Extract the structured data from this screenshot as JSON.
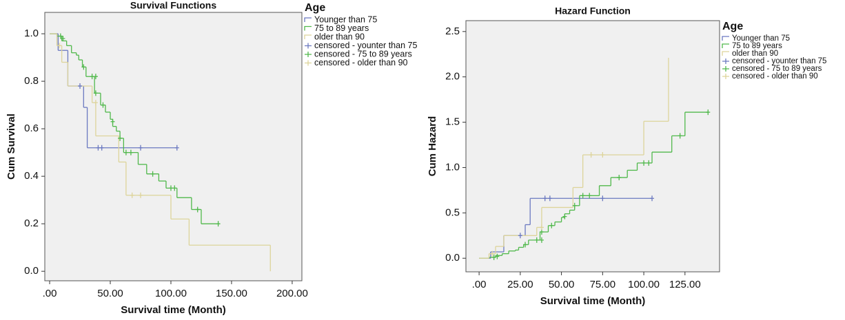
{
  "chart_data": [
    {
      "type": "step",
      "title": "Survival Functions",
      "x_label": "Survival time (Month)",
      "y_label": "Cum Survival",
      "legend_title": "Age",
      "xlim": [
        -4,
        208
      ],
      "ylim": [
        -0.04,
        1.09
      ],
      "xticks": [
        {
          "value": 0,
          "label": ".00"
        },
        {
          "value": 50,
          "label": "50.00"
        },
        {
          "value": 100,
          "label": "100.00"
        },
        {
          "value": 150,
          "label": "150.00"
        },
        {
          "value": 200,
          "label": "200.00"
        }
      ],
      "yticks": [
        {
          "value": 0,
          "label": "0.0"
        },
        {
          "value": 0.2,
          "label": "0.2"
        },
        {
          "value": 0.4,
          "label": "0.4"
        },
        {
          "value": 0.6,
          "label": "0.6"
        },
        {
          "value": 0.8,
          "label": "0.8"
        },
        {
          "value": 1,
          "label": "1.0"
        }
      ],
      "series": [
        {
          "name": "Younger than 75",
          "color": "#6a78c0",
          "x": [
            0,
            7,
            15,
            28,
            31,
            105
          ],
          "values": [
            1.0,
            0.93,
            0.78,
            0.69,
            0.52,
            0.52
          ]
        },
        {
          "name": "75 to 89 years",
          "color": "#4fb84a",
          "x": [
            0,
            6,
            10,
            14,
            18,
            22,
            24,
            27,
            30,
            37,
            42,
            46,
            50,
            52,
            55,
            58,
            61,
            73,
            80,
            90,
            96,
            105,
            117,
            125,
            139
          ],
          "values": [
            1.0,
            0.99,
            0.97,
            0.95,
            0.92,
            0.91,
            0.89,
            0.86,
            0.82,
            0.75,
            0.7,
            0.67,
            0.64,
            0.61,
            0.59,
            0.56,
            0.5,
            0.45,
            0.41,
            0.38,
            0.35,
            0.31,
            0.26,
            0.2,
            0.2
          ]
        },
        {
          "name": "older than 90",
          "color": "#ddd49a",
          "x": [
            0,
            6,
            10,
            15,
            35,
            38,
            57,
            63,
            100,
            115,
            182
          ],
          "values": [
            1.0,
            0.95,
            0.88,
            0.78,
            0.71,
            0.57,
            0.46,
            0.32,
            0.22,
            0.11,
            0.0
          ]
        },
        {
          "name": "censored - younter than 75",
          "color": "#6a78c0",
          "marker": "+",
          "x": [
            25,
            40,
            43,
            75,
            105
          ],
          "values": [
            0.78,
            0.52,
            0.52,
            0.52,
            0.52
          ]
        },
        {
          "name": "censored - 75 to 89 years",
          "color": "#4fb84a",
          "marker": "+",
          "x": [
            9,
            11,
            28,
            35,
            38,
            38,
            44,
            52,
            58,
            63,
            67,
            85,
            100,
            103,
            122,
            139
          ],
          "values": [
            0.99,
            0.98,
            0.86,
            0.82,
            0.82,
            0.75,
            0.7,
            0.63,
            0.56,
            0.5,
            0.5,
            0.41,
            0.35,
            0.35,
            0.26,
            0.2
          ]
        },
        {
          "name": "censored - older than 90",
          "color": "#ddd49a",
          "marker": "+",
          "x": [
            8,
            38,
            68,
            75
          ],
          "values": [
            0.95,
            0.71,
            0.32,
            0.32
          ]
        }
      ]
    },
    {
      "type": "step",
      "title": "Hazard Function",
      "x_label": "Survival time (Month)",
      "y_label": "Cum Hazard",
      "legend_title": "Age",
      "xlim": [
        -8,
        146
      ],
      "ylim": [
        -0.15,
        2.62
      ],
      "xticks": [
        {
          "value": 0,
          "label": ".00"
        },
        {
          "value": 25,
          "label": "25.00"
        },
        {
          "value": 50,
          "label": "50.00"
        },
        {
          "value": 75,
          "label": "75.00"
        },
        {
          "value": 100,
          "label": "100.00"
        },
        {
          "value": 125,
          "label": "125.00"
        }
      ],
      "yticks": [
        {
          "value": 0,
          "label": "0.0"
        },
        {
          "value": 0.5,
          "label": "0.5"
        },
        {
          "value": 1,
          "label": "1.0"
        },
        {
          "value": 1.5,
          "label": "1.5"
        },
        {
          "value": 2,
          "label": "2.0"
        },
        {
          "value": 2.5,
          "label": "2.5"
        }
      ],
      "series": [
        {
          "name": "Younger than 75",
          "color": "#6a78c0",
          "x": [
            0,
            7,
            15,
            28,
            31,
            105
          ],
          "values": [
            0,
            0.07,
            0.25,
            0.37,
            0.66,
            0.66
          ]
        },
        {
          "name": "75 to 89 years",
          "color": "#4fb84a",
          "x": [
            0,
            6,
            10,
            14,
            18,
            22,
            24,
            27,
            30,
            37,
            42,
            46,
            50,
            52,
            55,
            58,
            61,
            73,
            80,
            90,
            96,
            105,
            117,
            125,
            139
          ],
          "values": [
            0,
            0.01,
            0.03,
            0.05,
            0.08,
            0.09,
            0.12,
            0.15,
            0.2,
            0.29,
            0.36,
            0.4,
            0.45,
            0.49,
            0.53,
            0.58,
            0.69,
            0.8,
            0.89,
            0.97,
            1.05,
            1.17,
            1.35,
            1.61,
            1.61
          ]
        },
        {
          "name": "older than 90",
          "color": "#ddd49a",
          "x": [
            0,
            6,
            10,
            15,
            35,
            38,
            57,
            63,
            100,
            115
          ],
          "values": [
            0,
            0.05,
            0.13,
            0.25,
            0.34,
            0.56,
            0.78,
            1.14,
            1.51,
            2.21
          ]
        },
        {
          "name": "censored - younter than 75",
          "color": "#6a78c0",
          "marker": "+",
          "x": [
            25,
            40,
            43,
            75,
            105
          ],
          "values": [
            0.25,
            0.66,
            0.66,
            0.66,
            0.66
          ]
        },
        {
          "name": "censored - 75 to 89 years",
          "color": "#4fb84a",
          "marker": "+",
          "x": [
            9,
            11,
            28,
            35,
            38,
            38,
            44,
            52,
            58,
            63,
            67,
            85,
            100,
            103,
            122,
            139
          ],
          "values": [
            0.01,
            0.02,
            0.15,
            0.2,
            0.2,
            0.29,
            0.36,
            0.46,
            0.58,
            0.69,
            0.69,
            0.89,
            1.05,
            1.05,
            1.35,
            1.61
          ]
        },
        {
          "name": "censored - older than 90",
          "color": "#ddd49a",
          "marker": "+",
          "x": [
            8,
            38,
            68,
            75
          ],
          "values": [
            0.05,
            0.34,
            1.14,
            1.14
          ]
        }
      ]
    }
  ]
}
